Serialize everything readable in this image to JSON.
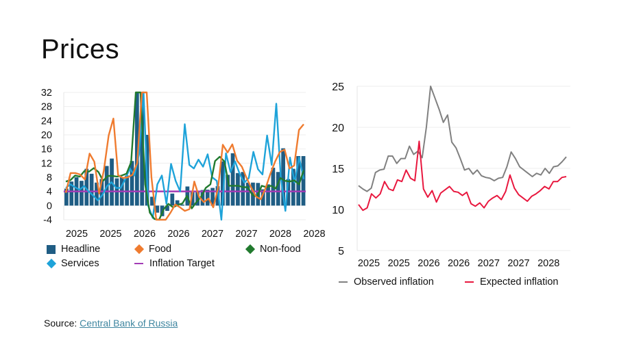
{
  "page": {
    "title": "Prices",
    "source_label": "Source:",
    "source_link_text": "Central Bank of Russia"
  },
  "colors": {
    "headline": "#1f5d84",
    "food": "#ef7b2f",
    "nonfood": "#217a2e",
    "services": "#1ea3d9",
    "target": "#a23bb5",
    "observed": "#808080",
    "expected": "#e8173e",
    "grid": "#eeeeee",
    "link": "#3f86a0"
  },
  "chart_data": [
    {
      "type": "bar",
      "title": "",
      "xlabel": "",
      "ylabel": "",
      "ylim": [
        -4,
        32
      ],
      "yticks": [
        32,
        28,
        24,
        20,
        16,
        12,
        8,
        4,
        0,
        -4
      ],
      "xtick_labels": [
        "2025",
        "2025",
        "2026",
        "2026",
        "2027",
        "2027",
        "2028",
        "2028"
      ],
      "grid": true,
      "legend": [
        {
          "name": "Headline",
          "marker": "square",
          "color_key": "headline"
        },
        {
          "name": "Food",
          "marker": "diamond",
          "color_key": "food"
        },
        {
          "name": "Non-food",
          "marker": "diamond",
          "color_key": "nonfood"
        },
        {
          "name": "Services",
          "marker": "diamond",
          "color_key": "services"
        },
        {
          "name": "Inflation Target",
          "marker": "line",
          "color_key": "target"
        }
      ],
      "legend_position": "bottom",
      "series": [
        {
          "name": "Headline",
          "kind": "bar",
          "values": [
            4.8,
            6.8,
            8,
            7,
            10.4,
            9,
            6.5,
            7.5,
            11.2,
            13.3,
            7.7,
            8,
            8.5,
            12.6,
            32,
            32,
            20,
            2.5,
            -2,
            -3,
            -1.5,
            3.4,
            1.5,
            0.3,
            5.4,
            3.8,
            4,
            4.4,
            4.5,
            5,
            5.5,
            12.5,
            8.7,
            14.8,
            9.2,
            9.5,
            6.5,
            6.5,
            6.4,
            4.6,
            6,
            10.7,
            9.5,
            16.2,
            7.5,
            10.4,
            14,
            14
          ]
        },
        {
          "name": "Food",
          "kind": "line",
          "values": [
            3.6,
            9.2,
            9.2,
            8.8,
            7.4,
            14.7,
            12.4,
            3.4,
            10,
            19.8,
            24.6,
            8.6,
            7.8,
            8,
            8.7,
            12,
            32,
            32,
            8,
            -4,
            -4,
            -4,
            -2,
            0.3,
            -0.5,
            -1.5,
            -1,
            6.8,
            2.5,
            1,
            2,
            -0.5,
            5,
            17.2,
            15,
            17.3,
            12.7,
            11,
            7.8,
            5,
            2.5,
            1.8,
            5,
            9,
            12.5,
            15.2,
            15.8,
            10.5,
            11.3,
            21.4,
            23
          ]
        },
        {
          "name": "Non-food",
          "kind": "line",
          "values": [
            6.8,
            7.2,
            8.5,
            8.2,
            9.8,
            9.6,
            10.6,
            9.5,
            7,
            8.4,
            8.4,
            8.2,
            8.5,
            9,
            12.3,
            32,
            32,
            6,
            -2,
            -3.8,
            -4,
            -1,
            0.5,
            -0.5,
            0.2,
            0.6,
            2.8,
            -0.8,
            1,
            2.5,
            5,
            6,
            12.6,
            13.8,
            12.5,
            5.6,
            5.6,
            5.6,
            5.2,
            5.2,
            3,
            2.5,
            5.6,
            5.2,
            5.6,
            4.8,
            7.8,
            7,
            6.8,
            7.1,
            6,
            10
          ]
        },
        {
          "name": "Services",
          "kind": "line",
          "values": [
            5,
            6,
            5.2,
            4.5,
            5.5,
            4,
            2.8,
            1.5,
            3,
            5.5,
            6.6,
            5,
            5,
            7.5,
            10.5,
            8.5,
            14.5,
            32,
            0,
            -3.5,
            6,
            8.5,
            0.5,
            11.8,
            7,
            4,
            23,
            11.5,
            10.5,
            13,
            11,
            14.5,
            8,
            7,
            -4,
            14.8,
            9.5,
            12.5,
            9,
            6.5,
            7.8,
            15.2,
            10.3,
            8.8,
            19.8,
            11.5,
            28.8,
            8,
            -1.5,
            13.6,
            6.5,
            13.6,
            7.5
          ]
        },
        {
          "name": "Inflation Target",
          "kind": "line",
          "values": [
            4,
            4
          ]
        }
      ]
    },
    {
      "type": "line",
      "title": "",
      "xlabel": "",
      "ylabel": "",
      "ylim": [
        5,
        25
      ],
      "yticks": [
        25,
        20,
        15,
        10,
        5
      ],
      "xtick_labels": [
        "2025",
        "2025",
        "2026",
        "2026",
        "2027",
        "2027",
        "2028"
      ],
      "grid": true,
      "legend_position": "bottom",
      "series": [
        {
          "name": "Observed inflation",
          "color_key": "observed",
          "values": [
            12.9,
            12.5,
            12.2,
            12.6,
            14.5,
            14.8,
            14.9,
            16.5,
            16.5,
            15.6,
            16.2,
            16.2,
            17.7,
            16.7,
            17.1,
            16.3,
            20,
            25,
            23.6,
            22.2,
            20.6,
            21.5,
            18.2,
            17.5,
            16.2,
            14.8,
            15,
            14.3,
            14.8,
            14.1,
            13.9,
            13.8,
            13.5,
            13.8,
            13.9,
            15.2,
            17,
            16.2,
            15.2,
            14.8,
            14.4,
            14.0,
            14.4,
            14.2,
            15,
            14.4,
            15.2,
            15.3,
            15.8,
            16.4
          ]
        },
        {
          "name": "Expected inflation",
          "color_key": "expected",
          "values": [
            10.6,
            9.9,
            10.2,
            11.9,
            11.4,
            11.9,
            13.4,
            12.5,
            12.3,
            13.6,
            13.4,
            14.8,
            13.8,
            13.5,
            18.3,
            12.5,
            11.5,
            12.3,
            10.9,
            12,
            12.4,
            12.8,
            12.2,
            12.1,
            11.7,
            12.1,
            10.7,
            10.4,
            10.8,
            10.2,
            11,
            11.4,
            11.7,
            11.2,
            12.2,
            14.2,
            12.6,
            11.8,
            11.4,
            11,
            11.6,
            11.9,
            12.3,
            12.8,
            12.5,
            13.4,
            13.4,
            13.9,
            14
          ]
        }
      ]
    }
  ]
}
